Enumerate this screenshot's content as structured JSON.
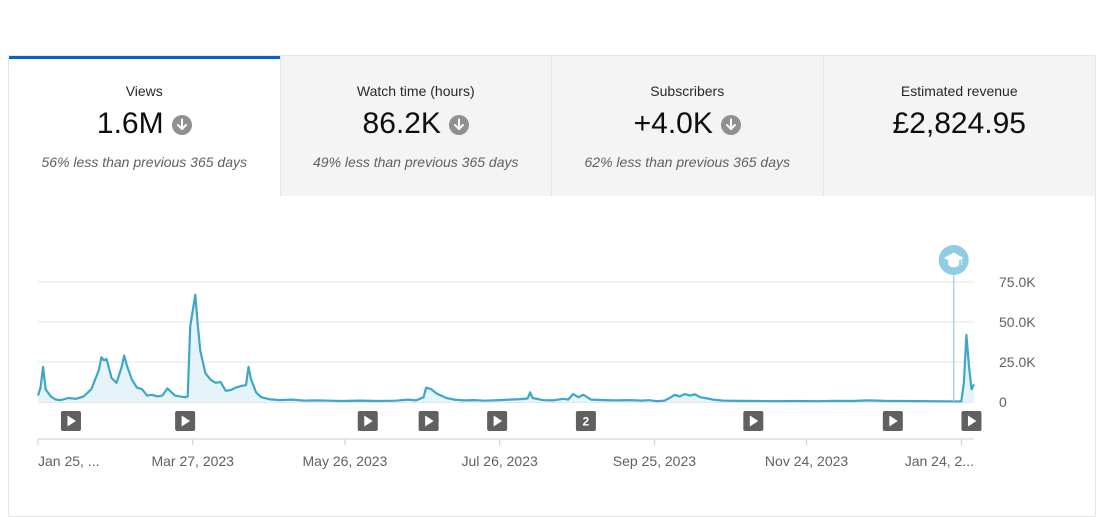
{
  "tabs": [
    {
      "label": "Views",
      "value": "1.6M",
      "trend_icon": "arrow-down-icon",
      "comparison": "56% less than previous 365 days",
      "active": true
    },
    {
      "label": "Watch time (hours)",
      "value": "86.2K",
      "trend_icon": "arrow-down-icon",
      "comparison": "49% less than previous 365 days",
      "active": false
    },
    {
      "label": "Subscribers",
      "value": "+4.0K",
      "trend_icon": "arrow-down-icon",
      "comparison": "62% less than previous 365 days",
      "active": false
    },
    {
      "label": "Estimated revenue",
      "value": "£2,824.95",
      "trend_icon": "",
      "comparison": "",
      "active": false
    }
  ],
  "colors": {
    "accent": "#065fd4",
    "line": "#3ea6c9",
    "fill": "#e6f4fa",
    "marker": "#606060",
    "milestone": "#90cde3"
  },
  "chart_data": {
    "type": "area",
    "series_metric": "Views",
    "ylim": [
      0,
      75000
    ],
    "y_ticks": [
      {
        "value": 0,
        "label": "0"
      },
      {
        "value": 25000,
        "label": "25.0K"
      },
      {
        "value": 50000,
        "label": "50.0K"
      },
      {
        "value": 75000,
        "label": "75.0K"
      }
    ],
    "x_start": "2023-01-25",
    "x_end": "2024-01-29",
    "x_ticks": [
      {
        "date": "2023-01-25",
        "label": "Jan 25, ..."
      },
      {
        "date": "2023-03-27",
        "label": "Mar 27, 2023"
      },
      {
        "date": "2023-05-26",
        "label": "May 26, 2023"
      },
      {
        "date": "2023-07-26",
        "label": "Jul 26, 2023"
      },
      {
        "date": "2023-09-25",
        "label": "Sep 25, 2023"
      },
      {
        "date": "2023-11-24",
        "label": "Nov 24, 2023"
      },
      {
        "date": "2024-01-24",
        "label": "Jan 24, 2..."
      }
    ],
    "points": [
      [
        "2023-01-25",
        4000
      ],
      [
        "2023-01-26",
        9000
      ],
      [
        "2023-01-27",
        22000
      ],
      [
        "2023-01-28",
        8000
      ],
      [
        "2023-01-30",
        3500
      ],
      [
        "2023-02-01",
        1500
      ],
      [
        "2023-02-03",
        1200
      ],
      [
        "2023-02-06",
        2500
      ],
      [
        "2023-02-09",
        2000
      ],
      [
        "2023-02-12",
        3500
      ],
      [
        "2023-02-15",
        8000
      ],
      [
        "2023-02-18",
        20000
      ],
      [
        "2023-02-19",
        28000
      ],
      [
        "2023-02-20",
        26000
      ],
      [
        "2023-02-21",
        27000
      ],
      [
        "2023-02-23",
        15000
      ],
      [
        "2023-02-25",
        12000
      ],
      [
        "2023-02-27",
        22000
      ],
      [
        "2023-02-28",
        29000
      ],
      [
        "2023-03-01",
        23000
      ],
      [
        "2023-03-03",
        14000
      ],
      [
        "2023-03-05",
        9000
      ],
      [
        "2023-03-07",
        8000
      ],
      [
        "2023-03-09",
        4000
      ],
      [
        "2023-03-11",
        4500
      ],
      [
        "2023-03-13",
        3500
      ],
      [
        "2023-03-15",
        4000
      ],
      [
        "2023-03-17",
        8500
      ],
      [
        "2023-03-18",
        7000
      ],
      [
        "2023-03-20",
        4000
      ],
      [
        "2023-03-22",
        3500
      ],
      [
        "2023-03-24",
        3000
      ],
      [
        "2023-03-25",
        3500
      ],
      [
        "2023-03-26",
        47000
      ],
      [
        "2023-03-27",
        57000
      ],
      [
        "2023-03-28",
        67000
      ],
      [
        "2023-03-29",
        48000
      ],
      [
        "2023-03-30",
        32000
      ],
      [
        "2023-04-01",
        18000
      ],
      [
        "2023-04-03",
        14000
      ],
      [
        "2023-04-05",
        12000
      ],
      [
        "2023-04-07",
        12500
      ],
      [
        "2023-04-09",
        7000
      ],
      [
        "2023-04-11",
        7500
      ],
      [
        "2023-04-13",
        9000
      ],
      [
        "2023-04-15",
        10000
      ],
      [
        "2023-04-17",
        10500
      ],
      [
        "2023-04-18",
        22000
      ],
      [
        "2023-04-19",
        14000
      ],
      [
        "2023-04-21",
        6000
      ],
      [
        "2023-04-23",
        3000
      ],
      [
        "2023-04-26",
        1800
      ],
      [
        "2023-04-30",
        1200
      ],
      [
        "2023-05-05",
        1500
      ],
      [
        "2023-05-10",
        900
      ],
      [
        "2023-05-15",
        1000
      ],
      [
        "2023-05-20",
        800
      ],
      [
        "2023-05-25",
        600
      ],
      [
        "2023-06-01",
        900
      ],
      [
        "2023-06-08",
        600
      ],
      [
        "2023-06-15",
        800
      ],
      [
        "2023-06-20",
        1500
      ],
      [
        "2023-06-23",
        1000
      ],
      [
        "2023-06-26",
        3000
      ],
      [
        "2023-06-27",
        9000
      ],
      [
        "2023-06-29",
        8000
      ],
      [
        "2023-07-01",
        5500
      ],
      [
        "2023-07-03",
        4000
      ],
      [
        "2023-07-05",
        2500
      ],
      [
        "2023-07-08",
        1500
      ],
      [
        "2023-07-12",
        1000
      ],
      [
        "2023-07-16",
        1200
      ],
      [
        "2023-07-20",
        800
      ],
      [
        "2023-07-26",
        1200
      ],
      [
        "2023-07-30",
        1500
      ],
      [
        "2023-08-03",
        1800
      ],
      [
        "2023-08-06",
        2200
      ],
      [
        "2023-08-07",
        6000
      ],
      [
        "2023-08-08",
        2500
      ],
      [
        "2023-08-12",
        1200
      ],
      [
        "2023-08-16",
        1000
      ],
      [
        "2023-08-20",
        2000
      ],
      [
        "2023-08-22",
        1500
      ],
      [
        "2023-08-24",
        5000
      ],
      [
        "2023-08-26",
        3000
      ],
      [
        "2023-08-28",
        4500
      ],
      [
        "2023-08-31",
        1500
      ],
      [
        "2023-09-05",
        1200
      ],
      [
        "2023-09-10",
        1000
      ],
      [
        "2023-09-15",
        1200
      ],
      [
        "2023-09-20",
        900
      ],
      [
        "2023-09-23",
        1100
      ],
      [
        "2023-09-26",
        500
      ],
      [
        "2023-09-29",
        900
      ],
      [
        "2023-10-01",
        2500
      ],
      [
        "2023-10-03",
        4500
      ],
      [
        "2023-10-05",
        3500
      ],
      [
        "2023-10-07",
        5000
      ],
      [
        "2023-10-09",
        4000
      ],
      [
        "2023-10-11",
        4800
      ],
      [
        "2023-10-13",
        3000
      ],
      [
        "2023-10-15",
        2500
      ],
      [
        "2023-10-18",
        1500
      ],
      [
        "2023-10-22",
        900
      ],
      [
        "2023-10-28",
        700
      ],
      [
        "2023-11-05",
        600
      ],
      [
        "2023-11-12",
        500
      ],
      [
        "2023-11-20",
        600
      ],
      [
        "2023-11-28",
        500
      ],
      [
        "2023-12-05",
        700
      ],
      [
        "2023-12-12",
        600
      ],
      [
        "2023-12-18",
        1000
      ],
      [
        "2023-12-25",
        700
      ],
      [
        "2024-01-01",
        600
      ],
      [
        "2024-01-10",
        500
      ],
      [
        "2024-01-18",
        400
      ],
      [
        "2024-01-24",
        300
      ],
      [
        "2024-01-25",
        12000
      ],
      [
        "2024-01-26",
        42000
      ],
      [
        "2024-01-27",
        23000
      ],
      [
        "2024-01-28",
        8000
      ],
      [
        "2024-01-29",
        11000
      ]
    ],
    "video_markers": [
      {
        "date": "2023-02-07",
        "label": ""
      },
      {
        "date": "2023-03-24",
        "label": ""
      },
      {
        "date": "2023-06-04",
        "label": ""
      },
      {
        "date": "2023-06-28",
        "label": ""
      },
      {
        "date": "2023-07-25",
        "label": ""
      },
      {
        "date": "2023-08-29",
        "label": "2"
      },
      {
        "date": "2023-11-03",
        "label": ""
      },
      {
        "date": "2023-12-28",
        "label": ""
      },
      {
        "date": "2024-01-28",
        "label": ""
      }
    ],
    "milestone": {
      "date": "2024-01-21",
      "icon": "graduation-cap-icon"
    },
    "grid": true
  }
}
